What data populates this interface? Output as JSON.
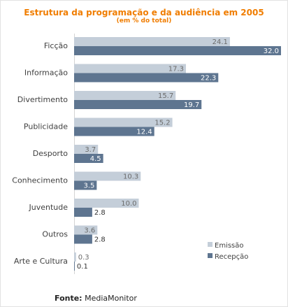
{
  "title": "Estrutura da programação e da audiência em 2005",
  "subtitle": "(em % do total)",
  "source": {
    "label": "Fonte:",
    "value": "MediaMonitor"
  },
  "colors": {
    "emissao": "#c4ced9",
    "recepcao": "#5e7590",
    "title": "#f07d00"
  },
  "chart_data": {
    "type": "bar",
    "orientation": "horizontal",
    "categories": [
      "Ficção",
      "Informação",
      "Divertimento",
      "Publicidade",
      "Desporto",
      "Conhecimento",
      "Juventude",
      "Outros",
      "Arte e Cultura"
    ],
    "series": [
      {
        "name": "Emissão",
        "values": [
          24.1,
          17.3,
          15.7,
          15.2,
          3.7,
          10.3,
          10.0,
          3.6,
          0.3
        ],
        "labels": [
          "24.1",
          "17.3",
          "15.7",
          "15.2",
          "3.7",
          "10.3",
          "10.0",
          "3.6",
          "0.3"
        ]
      },
      {
        "name": "Recepção",
        "values": [
          32.0,
          22.3,
          19.7,
          12.4,
          4.5,
          3.5,
          2.8,
          2.8,
          0.1
        ],
        "labels": [
          "32.0",
          "22.3",
          "19.7",
          "12.4",
          "4.5",
          "3.5",
          "2.8",
          "2.8",
          "0.1"
        ]
      }
    ],
    "xlim": [
      0,
      32
    ],
    "legend_position": "bottom-right"
  }
}
